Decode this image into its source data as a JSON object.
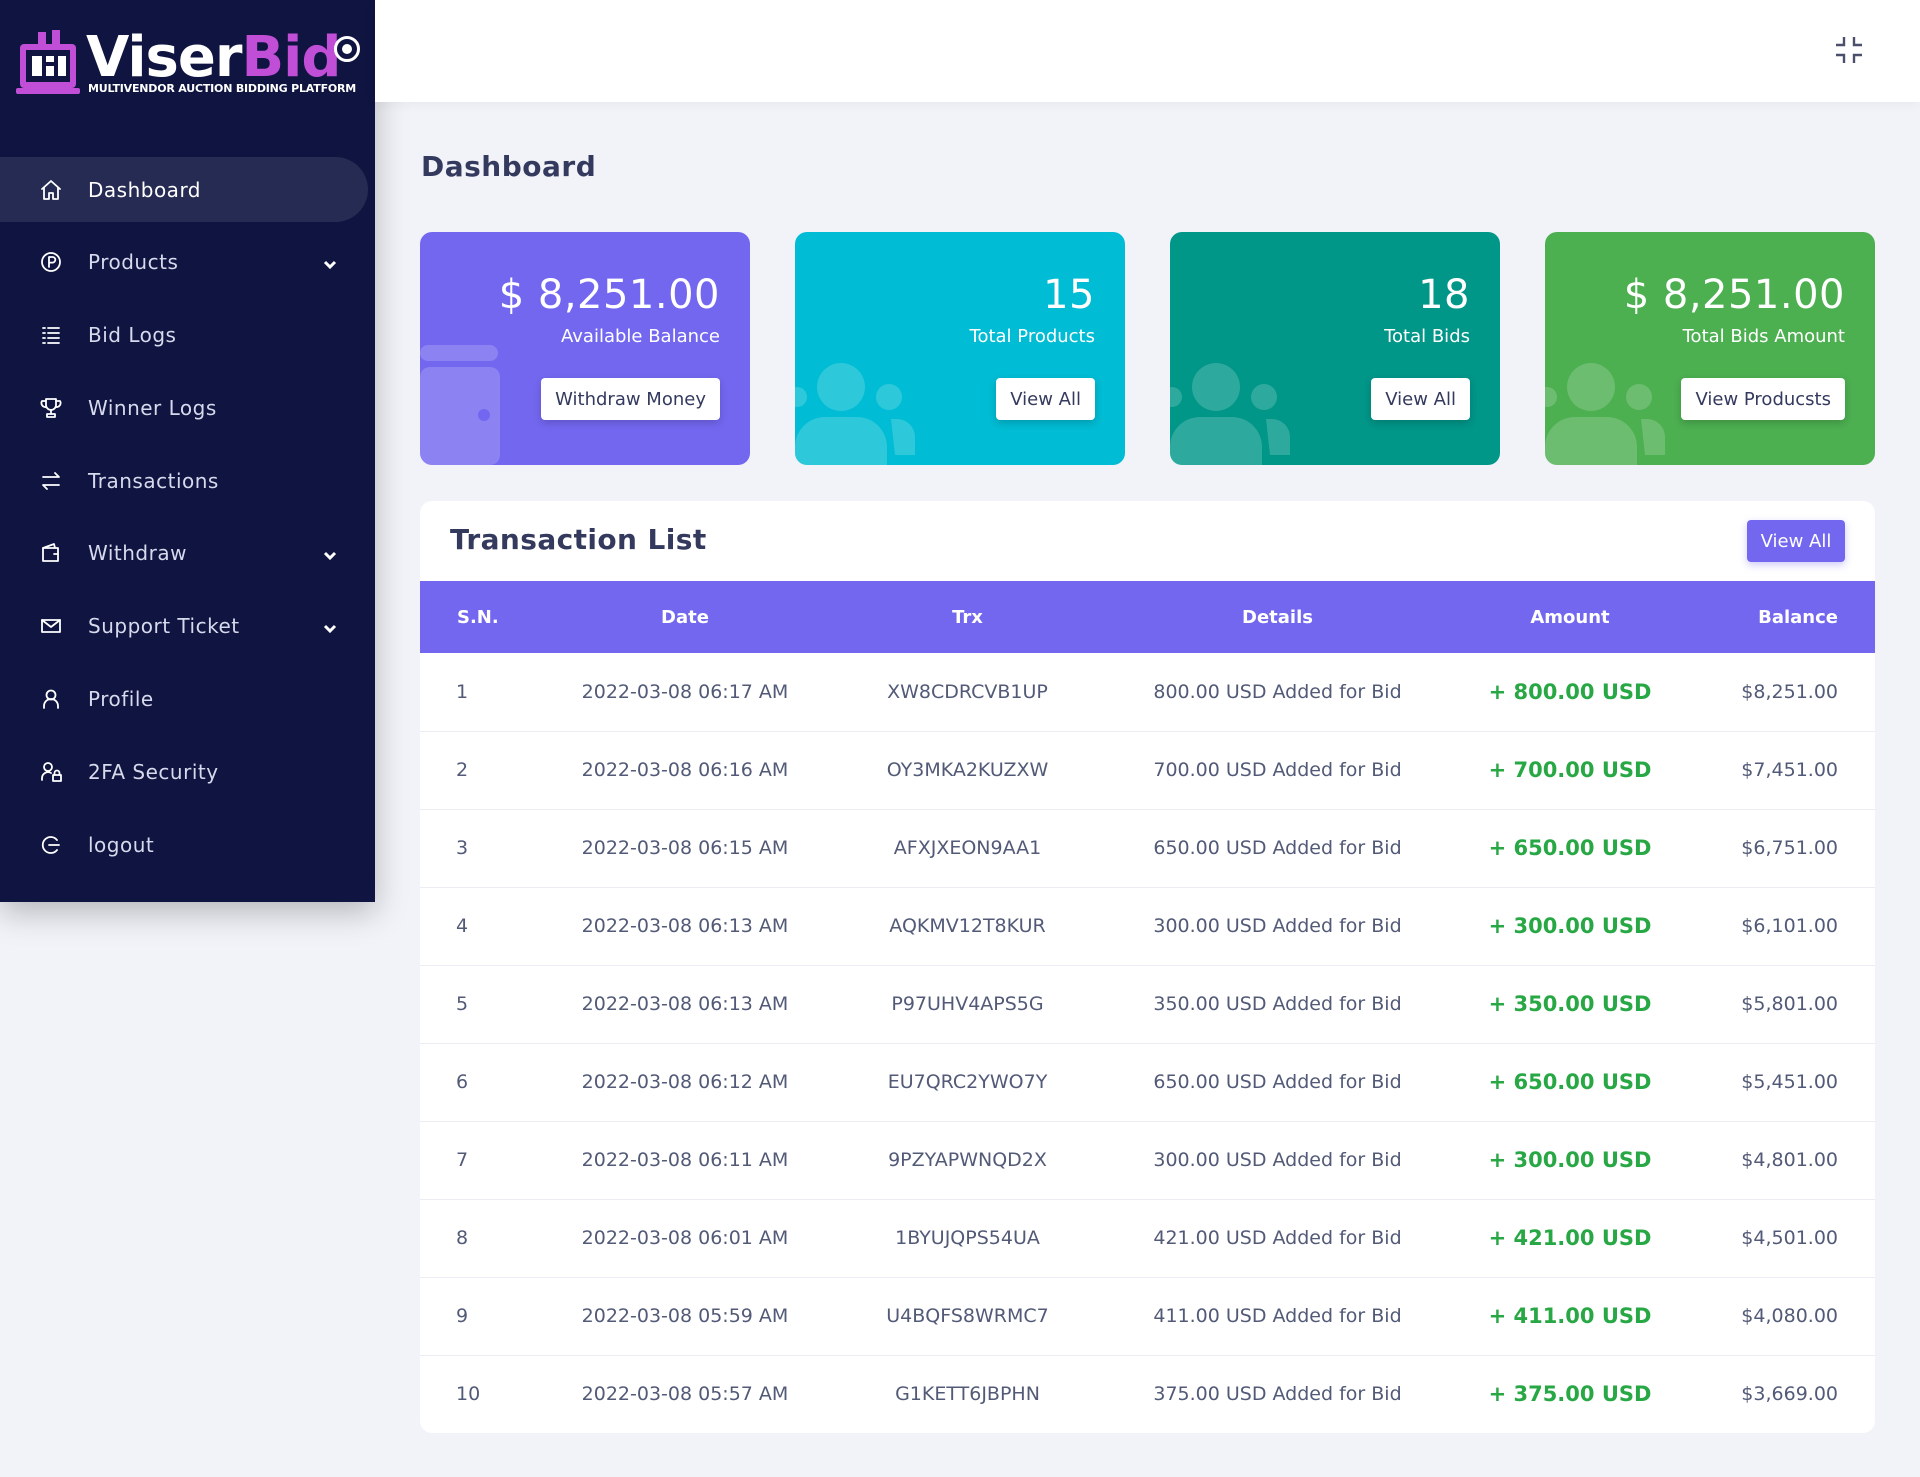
{
  "brand": {
    "name_white": "Viser",
    "name_purple": "Bid",
    "tagline": "MULTIVENDOR AUCTION BIDDING PLATFORM"
  },
  "colors": {
    "sidebar": "#0f1440",
    "accent": "#7367f0",
    "card_balance": "#7367f0",
    "card_products": "#00bcd4",
    "card_bids": "#009688",
    "card_bids_amount": "#4caf50",
    "amount_green": "#28a745"
  },
  "sidebar": {
    "items": [
      {
        "label": "Dashboard",
        "icon": "home-icon",
        "active": true
      },
      {
        "label": "Products",
        "icon": "product-icon",
        "has_submenu": true
      },
      {
        "label": "Bid Logs",
        "icon": "list-icon"
      },
      {
        "label": "Winner Logs",
        "icon": "trophy-icon"
      },
      {
        "label": "Transactions",
        "icon": "exchange-icon"
      },
      {
        "label": "Withdraw",
        "icon": "wallet-icon",
        "has_submenu": true
      },
      {
        "label": "Support Ticket",
        "icon": "envelope-icon",
        "has_submenu": true
      },
      {
        "label": "Profile",
        "icon": "user-icon"
      },
      {
        "label": "2FA Security",
        "icon": "user-lock-icon"
      },
      {
        "label": "logout",
        "icon": "logout-icon"
      }
    ]
  },
  "topbar": {
    "fullscreen_icon": "compress-icon"
  },
  "page": {
    "title": "Dashboard"
  },
  "cards": [
    {
      "value": "$ 8,251.00",
      "label": "Available Balance",
      "button": "Withdraw Money",
      "icon": "wallet-icon"
    },
    {
      "value": "15",
      "label": "Total Products",
      "button": "View All",
      "icon": "users-icon"
    },
    {
      "value": "18",
      "label": "Total Bids",
      "button": "View All",
      "icon": "users-icon"
    },
    {
      "value": "$ 8,251.00",
      "label": "Total Bids Amount",
      "button": "View Producsts",
      "icon": "users-icon"
    }
  ],
  "transactions": {
    "title": "Transaction List",
    "view_all": "View All",
    "columns": {
      "sn": "S.N.",
      "date": "Date",
      "trx": "Trx",
      "details": "Details",
      "amount": "Amount",
      "balance": "Balance"
    },
    "rows": [
      {
        "sn": "1",
        "date": "2022-03-08 06:17 AM",
        "trx": "XW8CDRCVB1UP",
        "details": "800.00 USD Added for Bid",
        "amount": "+ 800.00 USD",
        "balance": "$8,251.00"
      },
      {
        "sn": "2",
        "date": "2022-03-08 06:16 AM",
        "trx": "OY3MKA2KUZXW",
        "details": "700.00 USD Added for Bid",
        "amount": "+ 700.00 USD",
        "balance": "$7,451.00"
      },
      {
        "sn": "3",
        "date": "2022-03-08 06:15 AM",
        "trx": "AFXJXEON9AA1",
        "details": "650.00 USD Added for Bid",
        "amount": "+ 650.00 USD",
        "balance": "$6,751.00"
      },
      {
        "sn": "4",
        "date": "2022-03-08 06:13 AM",
        "trx": "AQKMV12T8KUR",
        "details": "300.00 USD Added for Bid",
        "amount": "+ 300.00 USD",
        "balance": "$6,101.00"
      },
      {
        "sn": "5",
        "date": "2022-03-08 06:13 AM",
        "trx": "P97UHV4APS5G",
        "details": "350.00 USD Added for Bid",
        "amount": "+ 350.00 USD",
        "balance": "$5,801.00"
      },
      {
        "sn": "6",
        "date": "2022-03-08 06:12 AM",
        "trx": "EU7QRC2YWO7Y",
        "details": "650.00 USD Added for Bid",
        "amount": "+ 650.00 USD",
        "balance": "$5,451.00"
      },
      {
        "sn": "7",
        "date": "2022-03-08 06:11 AM",
        "trx": "9PZYAPWNQD2X",
        "details": "300.00 USD Added for Bid",
        "amount": "+ 300.00 USD",
        "balance": "$4,801.00"
      },
      {
        "sn": "8",
        "date": "2022-03-08 06:01 AM",
        "trx": "1BYUJQPS54UA",
        "details": "421.00 USD Added for Bid",
        "amount": "+ 421.00 USD",
        "balance": "$4,501.00"
      },
      {
        "sn": "9",
        "date": "2022-03-08 05:59 AM",
        "trx": "U4BQFS8WRMC7",
        "details": "411.00 USD Added for Bid",
        "amount": "+ 411.00 USD",
        "balance": "$4,080.00"
      },
      {
        "sn": "10",
        "date": "2022-03-08 05:57 AM",
        "trx": "G1KETT6JBPHN",
        "details": "375.00 USD Added for Bid",
        "amount": "+ 375.00 USD",
        "balance": "$3,669.00"
      }
    ]
  }
}
